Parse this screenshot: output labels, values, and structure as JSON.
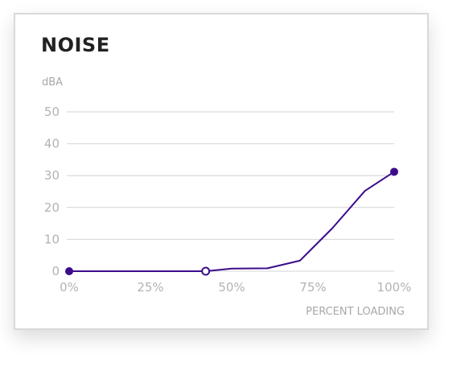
{
  "card": {
    "title": "NOISE"
  },
  "colors": {
    "line": "#3a0c8c",
    "grid": "#d4d4d4",
    "text": "#b3b3b3"
  },
  "chart_data": {
    "type": "line",
    "title": "NOISE",
    "ylabel": "dBA",
    "xlabel": "PERCENT LOADING",
    "xlim": [
      0,
      100
    ],
    "ylim": [
      0,
      50
    ],
    "x_ticks": [
      0,
      25,
      50,
      75,
      100
    ],
    "x_tick_labels": [
      "0%",
      "25%",
      "50%",
      "75%",
      "100%"
    ],
    "y_ticks": [
      0,
      10,
      20,
      30,
      40,
      50
    ],
    "y_tick_labels": [
      "0",
      "10",
      "20",
      "30",
      "40",
      "50"
    ],
    "grid": true,
    "series": [
      {
        "x": [
          0,
          42,
          50,
          61,
          71,
          81,
          91,
          100
        ],
        "y": [
          0,
          0,
          0.8,
          0.9,
          3.3,
          13.5,
          25.2,
          31.2
        ],
        "markers": [
          {
            "x": 0,
            "y": 0,
            "style": "filled"
          },
          {
            "x": 42,
            "y": 0,
            "style": "hollow"
          },
          {
            "x": 100,
            "y": 31.2,
            "style": "filled"
          }
        ]
      }
    ]
  }
}
